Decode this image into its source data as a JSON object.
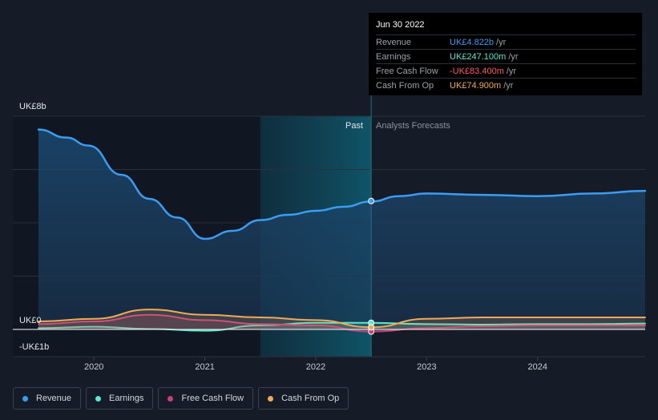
{
  "tooltip": {
    "date": "Jun 30 2022",
    "rows": [
      {
        "label": "Revenue",
        "value": "UK£4.822b",
        "unit": "/yr",
        "color": "#3b9cf0"
      },
      {
        "label": "Earnings",
        "value": "UK£247.100m",
        "unit": "/yr",
        "color": "#5ee6cf"
      },
      {
        "label": "Free Cash Flow",
        "value": "-UK£83.400m",
        "unit": "/yr",
        "color": "#ff5a5f"
      },
      {
        "label": "Cash From Op",
        "value": "UK£74.900m",
        "unit": "/yr",
        "color": "#f0a95a"
      }
    ]
  },
  "chart_data": {
    "type": "line",
    "y_labels": {
      "top": "UK£8b",
      "zero": "UK£0",
      "bottom": "-UK£1b"
    },
    "ylim": [
      -1,
      8
    ],
    "xlim": [
      2019.5,
      2024.97
    ],
    "x_ticks": [
      "2020",
      "2021",
      "2022",
      "2023",
      "2024"
    ],
    "x_tick_values": [
      2020,
      2021,
      2022,
      2023,
      2024
    ],
    "past_label": "Past",
    "forecast_label": "Analysts Forecasts",
    "divider_x": 2022.5,
    "shade_start_x": 2021.5,
    "series": [
      {
        "name": "Revenue",
        "color": "#3b9cf0",
        "x": [
          2019.5,
          2019.75,
          2019.95,
          2020.25,
          2020.5,
          2020.75,
          2021,
          2021.25,
          2021.5,
          2021.75,
          2022,
          2022.25,
          2022.5,
          2022.75,
          2023,
          2023.5,
          2024,
          2024.5,
          2024.97
        ],
        "y": [
          7.5,
          7.2,
          6.9,
          5.8,
          4.9,
          4.2,
          3.4,
          3.7,
          4.1,
          4.3,
          4.45,
          4.6,
          4.8,
          5.0,
          5.1,
          5.05,
          5.0,
          5.1,
          5.2
        ]
      },
      {
        "name": "Earnings",
        "color": "#5ee6cf",
        "x": [
          2019.5,
          2020,
          2020.5,
          2021,
          2021.5,
          2022,
          2022.5,
          2023,
          2023.5,
          2024,
          2024.5,
          2024.97
        ],
        "y": [
          0.05,
          0.1,
          0.02,
          -0.05,
          0.15,
          0.25,
          0.25,
          0.2,
          0.18,
          0.2,
          0.2,
          0.22
        ]
      },
      {
        "name": "Free Cash Flow",
        "color": "#c4417f",
        "x": [
          2019.5,
          2020,
          2020.5,
          2021,
          2021.5,
          2022,
          2022.5,
          2023,
          2023.5,
          2024,
          2024.5,
          2024.97
        ],
        "y": [
          0.2,
          0.3,
          0.55,
          0.35,
          0.2,
          0.15,
          -0.08,
          0.05,
          0.12,
          0.15,
          0.15,
          0.15
        ]
      },
      {
        "name": "Cash From Op",
        "color": "#f0a95a",
        "x": [
          2019.5,
          2020,
          2020.5,
          2021,
          2021.5,
          2022,
          2022.5,
          2023,
          2023.5,
          2024,
          2024.5,
          2024.97
        ],
        "y": [
          0.3,
          0.4,
          0.75,
          0.55,
          0.45,
          0.35,
          0.08,
          0.4,
          0.45,
          0.45,
          0.45,
          0.45
        ]
      }
    ],
    "highlight_x": 2022.5,
    "highlight_values": [
      4.82,
      0.25,
      -0.08,
      0.08
    ]
  },
  "legend": [
    {
      "label": "Revenue",
      "color": "#3b9cf0"
    },
    {
      "label": "Earnings",
      "color": "#5ee6cf"
    },
    {
      "label": "Free Cash Flow",
      "color": "#c4417f"
    },
    {
      "label": "Cash From Op",
      "color": "#f0a95a"
    }
  ]
}
